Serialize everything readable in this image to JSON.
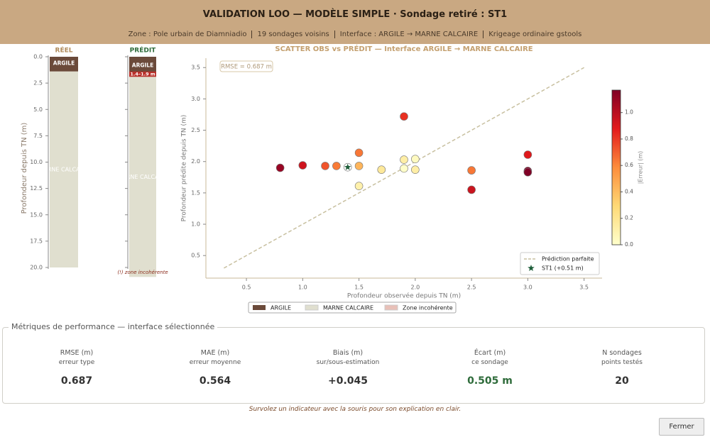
{
  "header": {
    "title": "VALIDATION LOO — MODÈLE SIMPLE · Sondage retiré : ST1",
    "subtitle": [
      "Zone : Pole urbain de Diamniadio",
      "19 sondages voisins",
      "Interface : ARGILE → MARNE CALCAIRE",
      "Krigeage ordinaire gstools"
    ]
  },
  "logs": {
    "ylabel": "Profondeur depuis TN (m)",
    "ylim": [
      0,
      20
    ],
    "yticks": [
      {
        "value": 0,
        "label": "0.0"
      },
      2.5,
      {
        "value": 5,
        "label": "5.0"
      },
      7.5,
      {
        "value": 10,
        "label": "10.0"
      },
      12.5,
      {
        "value": 15,
        "label": "15.0"
      },
      17.5,
      {
        "value": 20,
        "label": "20.0"
      }
    ],
    "columns": [
      {
        "title": "RÉEL",
        "color": "#b08a5a",
        "layers": [
          {
            "name": "ARGILE",
            "top": 0,
            "bottom": 1.4,
            "color": "#6b4a3a"
          },
          {
            "name": "MARNE CALCAIRE",
            "top": 1.4,
            "bottom": 20,
            "color": "#e0dfcf"
          }
        ]
      },
      {
        "title": "PRÉDIT",
        "color": "#2e6b3a",
        "layers": [
          {
            "name": "ARGILE",
            "top": 0,
            "bottom": 1.9,
            "color": "#6b4a3a"
          },
          {
            "name": "MARNE CALCAIRE",
            "top": 1.9,
            "bottom": 20.9,
            "color": "#e0dfcf"
          }
        ],
        "incoherent": {
          "top": 1.4,
          "bottom": 1.9,
          "label": "1.4–1.9 m",
          "color": "#b8302a"
        },
        "note": "(!) zone incohérente"
      }
    ]
  },
  "chart_data": {
    "type": "scatter",
    "title": "SCATTER OBS vs PRÉDIT — Interface ARGILE → MARNE CALCAIRE",
    "xlabel": "Profondeur observée depuis TN (m)",
    "ylabel": "Profondeur prédite depuis TN (m)",
    "xlim": [
      0.14,
      3.66
    ],
    "ylim": [
      0.14,
      3.65
    ],
    "xticks": [
      0.5,
      {
        "value": 1,
        "label": "1.0"
      },
      1.5,
      {
        "value": 2,
        "label": "2.0"
      },
      2.5,
      {
        "value": 3,
        "label": "3.0"
      },
      3.5
    ],
    "yticks": [
      0.5,
      {
        "value": 1,
        "label": "1.0"
      },
      1.5,
      {
        "value": 2,
        "label": "2.0"
      },
      2.5,
      {
        "value": 3,
        "label": "3.0"
      },
      3.5
    ],
    "x": [
      0.8,
      1.0,
      1.2,
      1.3,
      1.5,
      1.5,
      1.5,
      1.7,
      1.9,
      1.9,
      1.9,
      2.0,
      2.0,
      2.5,
      2.5,
      3.0,
      3.0,
      3.0
    ],
    "values": [
      1.9,
      1.94,
      1.93,
      1.93,
      1.93,
      2.14,
      1.61,
      1.87,
      2.72,
      2.03,
      1.89,
      2.04,
      1.87,
      1.86,
      1.55,
      2.11,
      1.85,
      1.83
    ],
    "errors": [
      1.1,
      0.94,
      0.73,
      0.63,
      0.43,
      0.64,
      0.11,
      0.17,
      0.82,
      0.13,
      0.01,
      0.04,
      0.13,
      0.64,
      0.95,
      0.89,
      1.15,
      1.17
    ],
    "highlight": {
      "name": "ST1 (+0.51 m)",
      "x": 1.4,
      "value": 1.91,
      "color": "#1e5e3a"
    },
    "reference_line": {
      "name": "Prédiction parfaite",
      "x": [
        0.3,
        3.5
      ],
      "values": [
        0.3,
        3.5
      ],
      "color": "#c8c0a0"
    },
    "annotation": "RMSE = 0.687 m",
    "legend": "lower right",
    "colorbar": {
      "label": "|Erreur| (m)",
      "lim": [
        0,
        1.17
      ],
      "ticks": [
        {
          "value": 0,
          "label": "0.0"
        },
        0.2,
        0.4,
        0.6,
        0.8,
        {
          "value": 1,
          "label": "1.0"
        }
      ],
      "colormap": [
        "#ffffcc",
        "#fed976",
        "#fd8d3c",
        "#e31a1c",
        "#800026"
      ]
    }
  },
  "layer_legend": [
    {
      "name": "ARGILE",
      "color": "#6b4a3a"
    },
    {
      "name": "MARNE CALCAIRE",
      "color": "#e0dfcf"
    },
    {
      "name": "Zone incohérente",
      "color": "#e8c0b8"
    }
  ],
  "metrics": {
    "title": "Métriques de performance — interface sélectionnée",
    "items": [
      {
        "label": "RMSE (m)",
        "sub": "erreur type",
        "value": "0.687",
        "color": "#333333"
      },
      {
        "label": "MAE (m)",
        "sub": "erreur moyenne",
        "value": "0.564",
        "color": "#333333"
      },
      {
        "label": "Biais (m)",
        "sub": "sur/sous-estimation",
        "value": "+0.045",
        "color": "#333333"
      },
      {
        "label": "Écart (m)",
        "sub": "ce sondage",
        "value": "0.505 m",
        "color": "#2e6b3a"
      },
      {
        "label": "N sondages",
        "sub": "points testés",
        "value": "20",
        "color": "#333333"
      }
    ]
  },
  "hint": "Survolez un indicateur avec la souris pour son explication en clair.",
  "button": "Fermer"
}
